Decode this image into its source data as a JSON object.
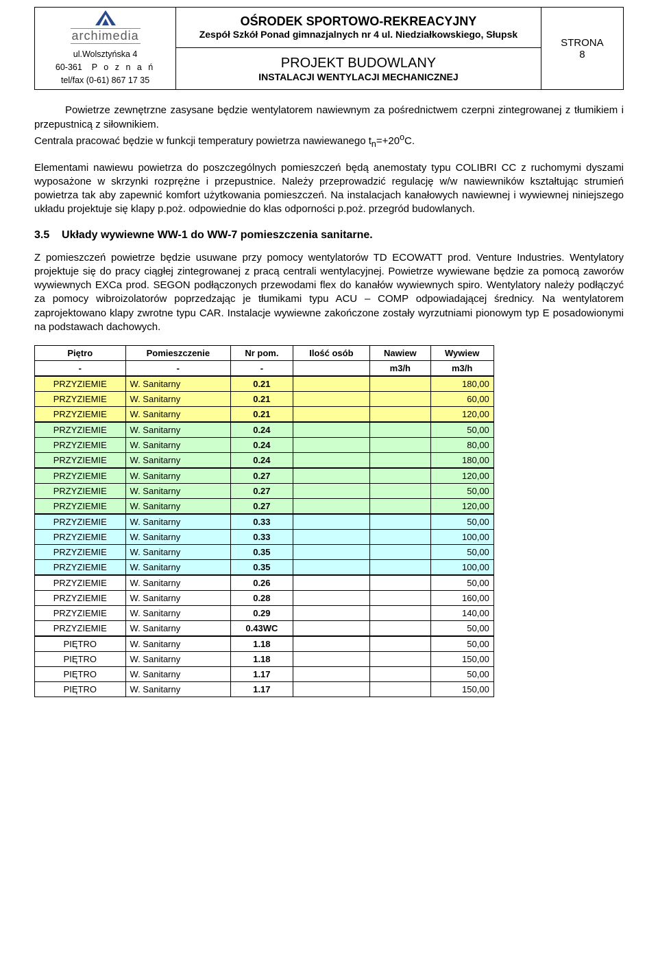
{
  "header": {
    "logo_word": "archimedia",
    "addr_line1": "ul.Wolsztyńska 4",
    "addr_line2_code": "60-361",
    "addr_line2_city": "P o z n a ń",
    "addr_line3": "tel/fax (0-61) 867 17 35",
    "mid1_line1": "OŚRODEK SPORTOWO-REKREACYJNY",
    "mid1_line2": "Zespół Szkół Ponad gimnazjalnych nr 4 ul. Niedziałkowskiego, Słupsk",
    "mid2_line1": "PROJEKT BUDOWLANY",
    "mid2_line2": "INSTALACJI WENTYLACJI MECHANICZNEJ",
    "right_label": "STRONA",
    "right_page": "8"
  },
  "body": {
    "p1a": "Powietrze zewnętrzne zasysane będzie wentylatorem nawiewnym za pośrednictwem czerpni  zintegrowanej z tłumikiem i przepustnicą z siłownikiem.",
    "p1b_pre": "Centrala pracować będzie w funkcji temperatury powietrza nawiewanego t",
    "p1b_sub": "n",
    "p1b_mid": "=+20",
    "p1b_sup": "o",
    "p1b_post": "C.",
    "p2": "Elementami nawiewu powietrza do poszczególnych pomieszczeń będą anemostaty typu COLIBRI CC z ruchomymi dyszami wyposażone w skrzynki rozprężne i  przepustnice. Należy przeprowadzić regulację w/w nawiewników kształtując strumień powietrza tak aby zapewnić komfort użytkowania pomieszczeń. Na instalacjach kanałowych nawiewnej i wywiewnej niniejszego układu projektuje się klapy p.poż. odpowiednie do klas odporności p.poż. przegród budowlanych.",
    "sec_num": "3.5",
    "sec_title": "Układy wywiewne WW-1 do WW-7 pomieszczenia sanitarne.",
    "p3": "Z pomieszczeń powietrze będzie usuwane przy pomocy wentylatorów TD ECOWATT prod. Venture Industries.  Wentylatory projektuje się do pracy ciągłej zintegrowanej z pracą centrali wentylacyjnej. Powietrze wywiewane będzie za pomocą zaworów wywiewnych EXCa prod. SEGON podłączonych przewodami flex do kanałów wywiewnych spiro. Wentylatory należy podłączyć za pomocy wibroizolatorów poprzedzając je tłumikami typu ACU – COMP odpowiadającej średnicy. Na wentylatorem zaprojektowano klapy zwrotne typu CAR. Instalacje wywiewne zakończone zostały wyrzutniami pionowym typ E posadowionymi na podstawach dachowych."
  },
  "table": {
    "columns": [
      "Piętro",
      "Pomieszczenie",
      "Nr pom.",
      "Ilość osób",
      "Nawiew",
      "Wywiew"
    ],
    "units_row": [
      "-",
      "-",
      "-",
      "",
      "m3/h",
      "m3/h"
    ],
    "rows": [
      {
        "class": "row-yellow",
        "thick": true,
        "cells": [
          "PRZYZIEMIE",
          "W. Sanitarny",
          "0.21",
          "",
          "",
          "180,00"
        ]
      },
      {
        "class": "row-yellow",
        "thick": false,
        "cells": [
          "PRZYZIEMIE",
          "W. Sanitarny",
          "0.21",
          "",
          "",
          "60,00"
        ]
      },
      {
        "class": "row-yellow",
        "thick": false,
        "cells": [
          "PRZYZIEMIE",
          "W. Sanitarny",
          "0.21",
          "",
          "",
          "120,00"
        ]
      },
      {
        "class": "row-green",
        "thick": true,
        "cells": [
          "PRZYZIEMIE",
          "W. Sanitarny",
          "0.24",
          "",
          "",
          "50,00"
        ]
      },
      {
        "class": "row-green",
        "thick": false,
        "cells": [
          "PRZYZIEMIE",
          "W. Sanitarny",
          "0.24",
          "",
          "",
          "80,00"
        ]
      },
      {
        "class": "row-green",
        "thick": false,
        "cells": [
          "PRZYZIEMIE",
          "W. Sanitarny",
          "0.24",
          "",
          "",
          "180,00"
        ]
      },
      {
        "class": "row-green",
        "thick": true,
        "cells": [
          "PRZYZIEMIE",
          "W. Sanitarny",
          "0.27",
          "",
          "",
          "120,00"
        ]
      },
      {
        "class": "row-green",
        "thick": false,
        "cells": [
          "PRZYZIEMIE",
          "W. Sanitarny",
          "0.27",
          "",
          "",
          "50,00"
        ]
      },
      {
        "class": "row-green",
        "thick": false,
        "cells": [
          "PRZYZIEMIE",
          "W. Sanitarny",
          "0.27",
          "",
          "",
          "120,00"
        ]
      },
      {
        "class": "row-blue",
        "thick": true,
        "cells": [
          "PRZYZIEMIE",
          "W. Sanitarny",
          "0.33",
          "",
          "",
          "50,00"
        ]
      },
      {
        "class": "row-blue",
        "thick": false,
        "cells": [
          "PRZYZIEMIE",
          "W. Sanitarny",
          "0.33",
          "",
          "",
          "100,00"
        ]
      },
      {
        "class": "row-blue",
        "thick": false,
        "cells": [
          "PRZYZIEMIE",
          "W. Sanitarny",
          "0.35",
          "",
          "",
          "50,00"
        ]
      },
      {
        "class": "row-blue",
        "thick": false,
        "cells": [
          "PRZYZIEMIE",
          "W. Sanitarny",
          "0.35",
          "",
          "",
          "100,00"
        ]
      },
      {
        "class": "row-plain",
        "thick": true,
        "cells": [
          "PRZYZIEMIE",
          "W. Sanitarny",
          "0.26",
          "",
          "",
          "50,00"
        ]
      },
      {
        "class": "row-plain",
        "thick": false,
        "cells": [
          "PRZYZIEMIE",
          "W. Sanitarny",
          "0.28",
          "",
          "",
          "160,00"
        ]
      },
      {
        "class": "row-plain",
        "thick": false,
        "cells": [
          "PRZYZIEMIE",
          "W. Sanitarny",
          "0.29",
          "",
          "",
          "140,00"
        ]
      },
      {
        "class": "row-plain",
        "thick": false,
        "cells": [
          "PRZYZIEMIE",
          "W. Sanitarny",
          "0.43WC",
          "",
          "",
          "50,00"
        ]
      },
      {
        "class": "row-plain",
        "thick": true,
        "cells": [
          "PIĘTRO",
          "W. Sanitarny",
          "1.18",
          "",
          "",
          "50,00"
        ]
      },
      {
        "class": "row-plain",
        "thick": false,
        "cells": [
          "PIĘTRO",
          "W. Sanitarny",
          "1.18",
          "",
          "",
          "150,00"
        ]
      },
      {
        "class": "row-plain",
        "thick": false,
        "cells": [
          "PIĘTRO",
          "W. Sanitarny",
          "1.17",
          "",
          "",
          "50,00"
        ]
      },
      {
        "class": "row-plain",
        "thick": false,
        "cells": [
          "PIĘTRO",
          "W. Sanitarny",
          "1.17",
          "",
          "",
          "150,00"
        ]
      }
    ]
  }
}
